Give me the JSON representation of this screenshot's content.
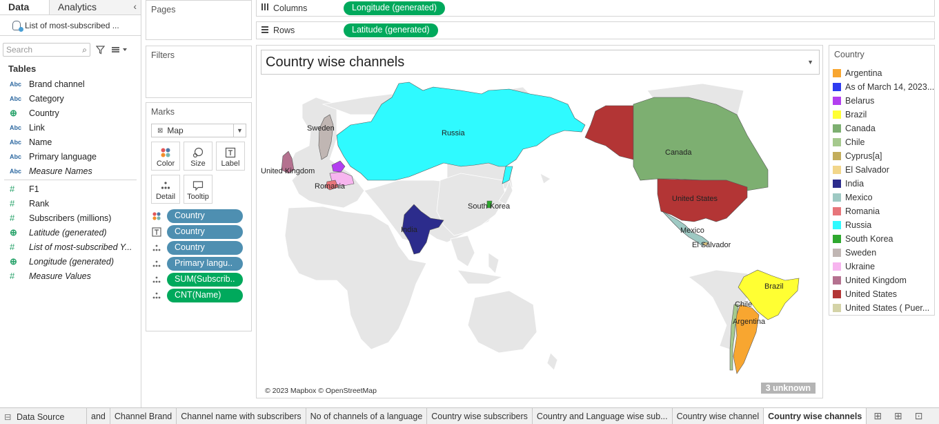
{
  "data_pane": {
    "tabs": [
      "Data",
      "Analytics"
    ],
    "datasource": "List of most-subscribed ...",
    "search_placeholder": "Search",
    "tables_label": "Tables",
    "dimension_fields": [
      {
        "type": "Abc",
        "name": "Brand channel"
      },
      {
        "type": "Abc",
        "name": "Category"
      },
      {
        "type": "geo",
        "name": "Country"
      },
      {
        "type": "Abc",
        "name": "Link"
      },
      {
        "type": "Abc",
        "name": "Name"
      },
      {
        "type": "Abc",
        "name": "Primary language"
      },
      {
        "type": "Abc",
        "name": "Measure Names"
      }
    ],
    "measure_fields": [
      {
        "type": "#",
        "name": "F1"
      },
      {
        "type": "#",
        "name": "Rank"
      },
      {
        "type": "#",
        "name": "Subscribers (millions)"
      },
      {
        "type": "geo",
        "name": "Latitude (generated)"
      },
      {
        "type": "#",
        "name": "List of most-subscribed Y..."
      },
      {
        "type": "geo",
        "name": "Longitude (generated)"
      },
      {
        "type": "#",
        "name": "Measure Values"
      }
    ]
  },
  "shelves": {
    "pages": "Pages",
    "filters": "Filters",
    "marks": "Marks",
    "mark_type": "Map",
    "mark_buttons": [
      "Color",
      "Size",
      "Label",
      "Detail",
      "Tooltip"
    ],
    "mark_pills": [
      {
        "icon": "color",
        "label": "Country",
        "kind": "dim"
      },
      {
        "icon": "label",
        "label": "Country",
        "kind": "dim"
      },
      {
        "icon": "detail",
        "label": "Country",
        "kind": "dim"
      },
      {
        "icon": "detail",
        "label": "Primary langu..",
        "kind": "dim"
      },
      {
        "icon": "detail",
        "label": "SUM(Subscrib..",
        "kind": "meas"
      },
      {
        "icon": "detail",
        "label": "CNT(Name)",
        "kind": "meas"
      }
    ],
    "columns_label": "Columns",
    "columns_pill": "Longitude (generated)",
    "rows_label": "Rows",
    "rows_pill": "Latitude (generated)"
  },
  "view": {
    "title": "Country wise channels",
    "copyright": "© 2023 Mapbox © OpenStreetMap",
    "unknown_badge": "3 unknown",
    "map_labels": [
      "Russia",
      "Sweden",
      "United Kingdom",
      "Romania",
      "Canada",
      "United States",
      "India",
      "South Korea",
      "Mexico",
      "El Salvador",
      "Brazil",
      "Chile",
      "Argentina"
    ]
  },
  "legend": {
    "title": "Country",
    "items": [
      {
        "label": "Argentina",
        "color": "#f8a630"
      },
      {
        "label": "As of March 14, 2023...",
        "color": "#2e3bf0"
      },
      {
        "label": "Belarus",
        "color": "#b33ff0"
      },
      {
        "label": "Brazil",
        "color": "#ffff33"
      },
      {
        "label": "Canada",
        "color": "#7daf71"
      },
      {
        "label": "Chile",
        "color": "#a5c98d"
      },
      {
        "label": "Cyprus[a]",
        "color": "#c3ad5b"
      },
      {
        "label": "El Salvador",
        "color": "#f2d68a"
      },
      {
        "label": "India",
        "color": "#2c2c8c"
      },
      {
        "label": "Mexico",
        "color": "#9ec9c3"
      },
      {
        "label": "Romania",
        "color": "#e7757a"
      },
      {
        "label": "Russia",
        "color": "#2ffaff"
      },
      {
        "label": "South Korea",
        "color": "#2ea82e"
      },
      {
        "label": "Sweden",
        "color": "#c0b6b3"
      },
      {
        "label": "Ukraine",
        "color": "#f7b5ef"
      },
      {
        "label": "United Kingdom",
        "color": "#b4718f"
      },
      {
        "label": "United States",
        "color": "#b33535"
      },
      {
        "label": "United States ( Puer...",
        "color": "#d4d3a7"
      }
    ]
  },
  "sheet_tabs": {
    "datasource": "Data Source",
    "tabs": [
      "and",
      "Channel Brand",
      "Channel name with subscribers",
      "No of channels of a language",
      "Country wise subscribers",
      "Country and Language wise sub...",
      "Country wise channel",
      "Country wise channels"
    ],
    "active": "Country wise channels"
  }
}
